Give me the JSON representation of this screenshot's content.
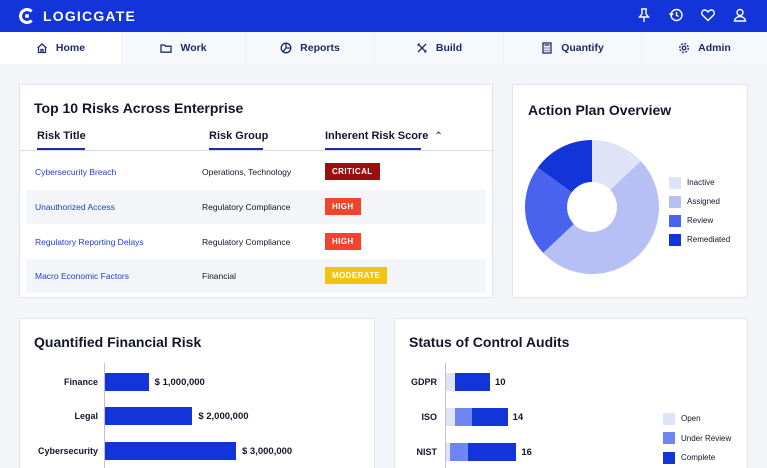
{
  "app": {
    "brand": "LOGICGATE"
  },
  "topbar": {
    "icons": [
      "pin-icon",
      "history-icon",
      "heart-icon",
      "user-icon"
    ]
  },
  "nav": [
    {
      "label": "Home",
      "icon": "home-icon",
      "active": true
    },
    {
      "label": "Work",
      "icon": "folder-icon"
    },
    {
      "label": "Reports",
      "icon": "pie-chart-icon"
    },
    {
      "label": "Build",
      "icon": "tools-icon"
    },
    {
      "label": "Quantify",
      "icon": "calculator-icon"
    },
    {
      "label": "Admin",
      "icon": "gear-icon"
    }
  ],
  "risks": {
    "title": "Top 10 Risks Across Enterprise",
    "columns": [
      "Risk Title",
      "Risk Group",
      "Inherent Risk Score"
    ],
    "rows": [
      {
        "title": "Cybersecurity Breach",
        "group": "Operations, Technology",
        "score": "CRITICAL",
        "color": "#9b0f0f"
      },
      {
        "title": "Unauthorized Access",
        "group": "Regulatory Compliance",
        "score": "HIGH",
        "color": "#f0442b"
      },
      {
        "title": "Regulatory Reporting Delays",
        "group": "Regulatory Compliance",
        "score": "HIGH",
        "color": "#f0442b"
      },
      {
        "title": "Macro Economic Factors",
        "group": "Financial",
        "score": "MODERATE",
        "color": "#f2c40f"
      }
    ]
  },
  "action_plan": {
    "title": "Action Plan Overview",
    "legend": [
      {
        "label": "Inactive",
        "color": "#dfe3f8"
      },
      {
        "label": "Assigned",
        "color": "#b7c0f5"
      },
      {
        "label": "Review",
        "color": "#4a63ee"
      },
      {
        "label": "Remediated",
        "color": "#1234d8"
      }
    ]
  },
  "financial": {
    "title": "Quantified Financial Risk",
    "bars": [
      {
        "label": "Finance",
        "value": "$ 1,000,000"
      },
      {
        "label": "Legal",
        "value": "$ 2,000,000"
      },
      {
        "label": "Cybersecurity",
        "value": "$ 3,000,000"
      }
    ]
  },
  "audits": {
    "title": "Status of Control Audits",
    "bars": [
      {
        "label": "GDPR",
        "total": "10"
      },
      {
        "label": "ISO",
        "total": "14"
      },
      {
        "label": "NIST",
        "total": "16"
      }
    ],
    "legend": [
      {
        "label": "Open",
        "color": "#dfe3f8"
      },
      {
        "label": "Under Review",
        "color": "#6f85f0"
      },
      {
        "label": "Complete",
        "color": "#1234d8"
      }
    ]
  },
  "chart_data": [
    {
      "type": "pie",
      "title": "Action Plan Overview",
      "categories": [
        "Inactive",
        "Assigned",
        "Review",
        "Remediated"
      ],
      "values": [
        13,
        50,
        22,
        15
      ]
    },
    {
      "type": "bar",
      "title": "Quantified Financial Risk",
      "categories": [
        "Finance",
        "Legal",
        "Cybersecurity"
      ],
      "values": [
        1000000,
        2000000,
        3000000
      ]
    },
    {
      "type": "bar",
      "title": "Status of Control Audits",
      "categories": [
        "GDPR",
        "ISO",
        "NIST"
      ],
      "series": [
        {
          "name": "Open",
          "values": [
            2,
            2,
            1
          ]
        },
        {
          "name": "Under Review",
          "values": [
            0,
            4,
            4
          ]
        },
        {
          "name": "Complete",
          "values": [
            8,
            8,
            11
          ]
        }
      ]
    }
  ]
}
